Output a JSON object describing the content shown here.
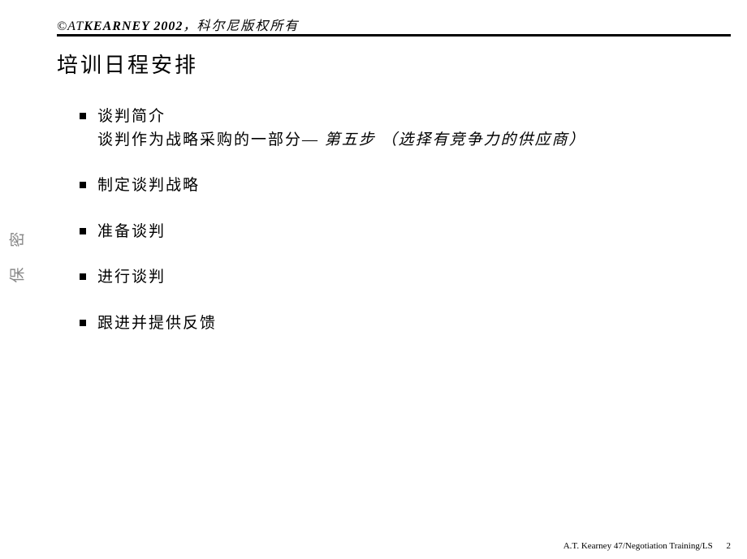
{
  "header": {
    "copyright_symbol": "©",
    "brand_at": "AT",
    "brand_name": "KEARNEY",
    "year": " 2002",
    "comma": "，",
    "copyright_text": "科尔尼版权所有"
  },
  "title": "培训日程安排",
  "items": [
    {
      "line1": "谈判简介",
      "line2_normal": "谈判作为战略采购的一部分— ",
      "line2_italic": "第五步 （选择有竞争力的供应商）"
    },
    {
      "line1": "制定谈判战略"
    },
    {
      "line1": "准备谈判"
    },
    {
      "line1": "进行谈判"
    },
    {
      "line1": "跟进并提供反馈"
    }
  ],
  "side_label": "保 密",
  "footer": {
    "text": "A.T. Kearney  47/Negotiation Training/LS",
    "page": "2"
  }
}
